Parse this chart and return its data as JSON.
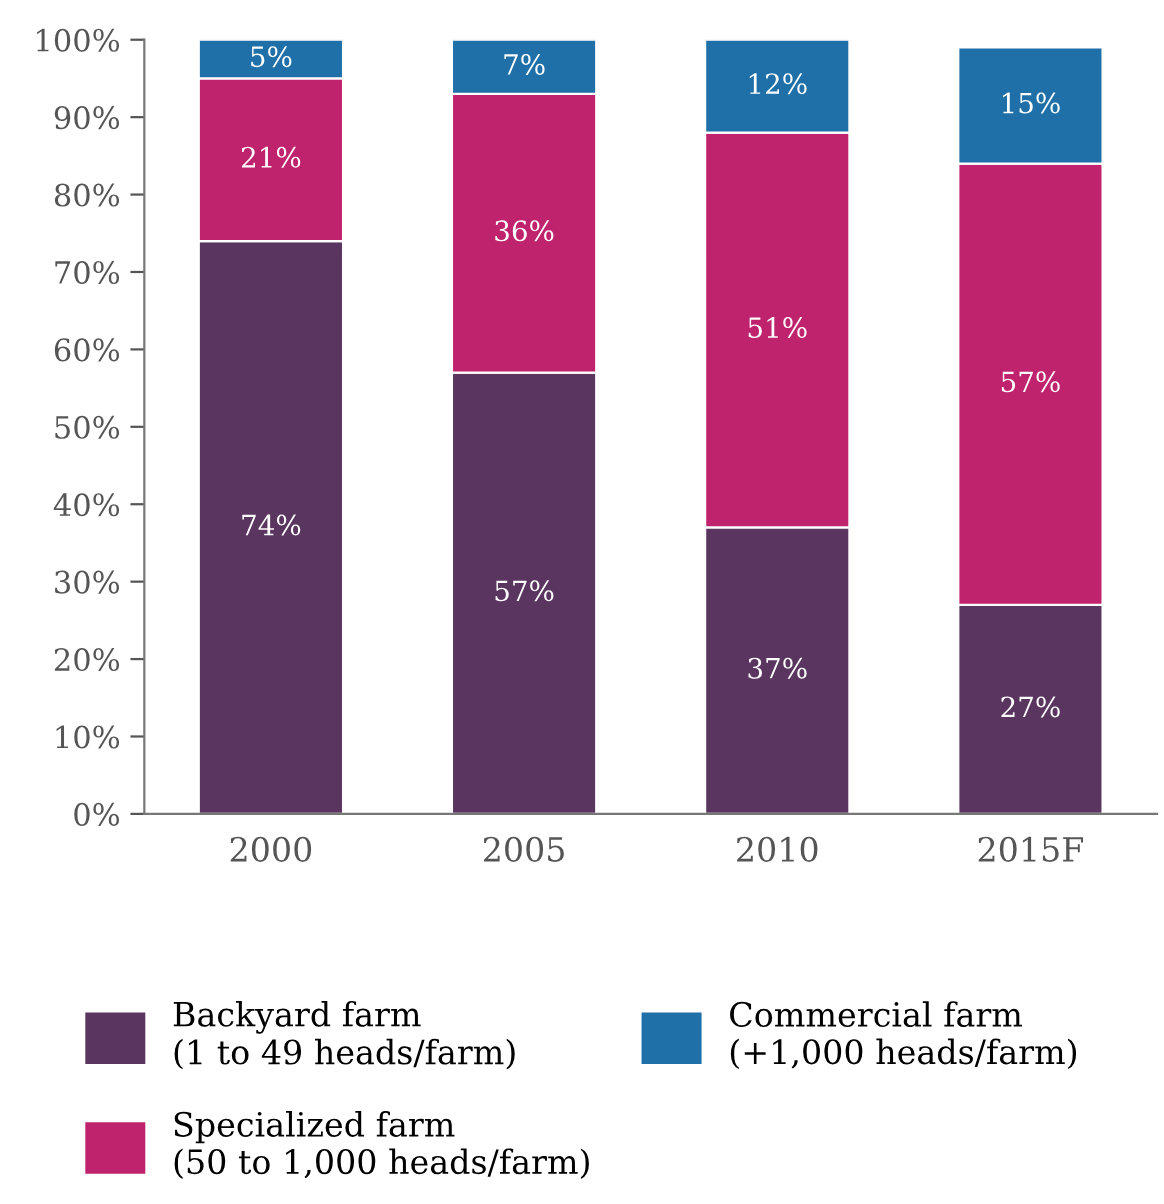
{
  "chart_data": {
    "type": "bar",
    "stacked": true,
    "categories": [
      "2000",
      "2005",
      "2010",
      "2015F"
    ],
    "series": [
      {
        "name": "Backyard farm\n(1 to 49 heads/farm)",
        "color": "#5a3560",
        "values": [
          74,
          57,
          37,
          27
        ],
        "value_labels": [
          "74%",
          "57%",
          "37%",
          "27%"
        ]
      },
      {
        "name": "Specialized farm\n(50 to 1,000 heads/farm)",
        "color": "#c0236e",
        "values": [
          21,
          36,
          51,
          57
        ],
        "value_labels": [
          "21%",
          "36%",
          "51%",
          "57%"
        ]
      },
      {
        "name": "Commercial farm\n(+1,000 heads/farm)",
        "color": "#1f6fa8",
        "values": [
          5,
          7,
          12,
          15
        ],
        "value_labels": [
          "5%",
          "7%",
          "12%",
          "15%"
        ]
      }
    ],
    "ylim": [
      0,
      100
    ],
    "yticks": [
      {
        "value": 0,
        "label": "0%"
      },
      {
        "value": 10,
        "label": "10%"
      },
      {
        "value": 20,
        "label": "20%"
      },
      {
        "value": 30,
        "label": "30%"
      },
      {
        "value": 40,
        "label": "40%"
      },
      {
        "value": 50,
        "label": "50%"
      },
      {
        "value": 60,
        "label": "60%"
      },
      {
        "value": 70,
        "label": "70%"
      },
      {
        "value": 80,
        "label": "80%"
      },
      {
        "value": 90,
        "label": "90%"
      },
      {
        "value": 100,
        "label": "100%"
      }
    ],
    "grid": false,
    "legend": "bottom"
  }
}
